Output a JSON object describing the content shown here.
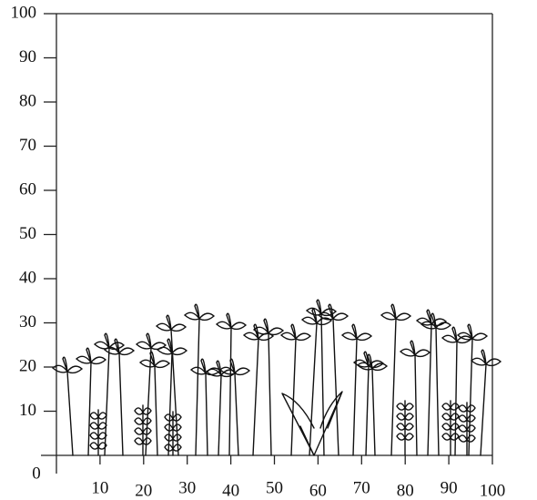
{
  "chart_data": {
    "type": "profile",
    "xlim": [
      0,
      100
    ],
    "ylim": [
      0,
      100
    ],
    "xticks": [
      10,
      20,
      30,
      40,
      50,
      60,
      70,
      80,
      90,
      100
    ],
    "yticks": [
      0,
      10,
      20,
      30,
      40,
      50,
      60,
      70,
      80,
      90,
      100
    ]
  }
}
